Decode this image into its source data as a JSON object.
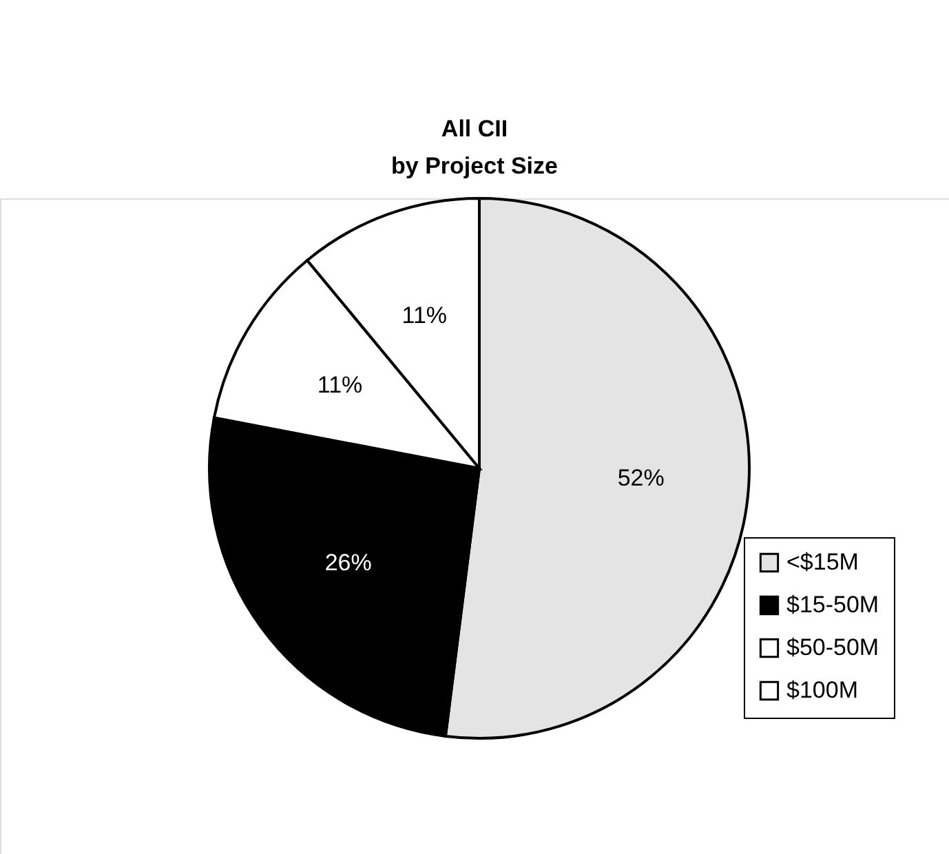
{
  "chart_data": {
    "type": "pie",
    "title": "All CII\nby Project Size",
    "categories": [
      "<$15M",
      "$15-50M",
      "$50-50M",
      "$100M"
    ],
    "values": [
      52,
      26,
      11,
      11
    ],
    "colors": [
      "#e4e4e4",
      "#000000",
      "#ffffff",
      "#ffffff"
    ],
    "value_labels": [
      "52%",
      "26%",
      "11%",
      "11%"
    ],
    "legend": "bottom right"
  }
}
